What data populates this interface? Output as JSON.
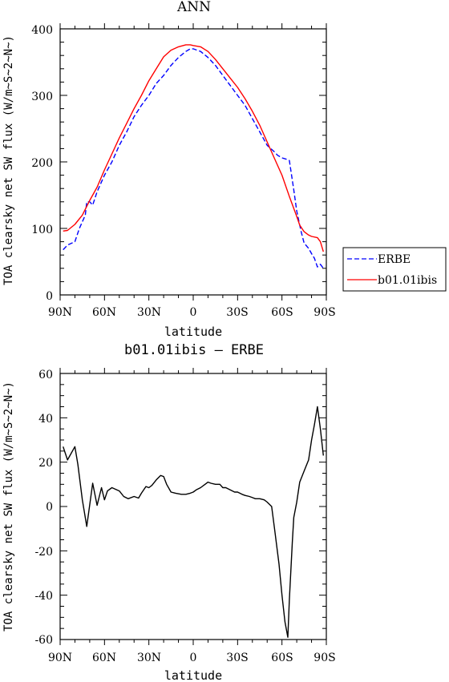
{
  "chart_data": [
    {
      "type": "line",
      "title": "ANN",
      "xlabel": "latitude",
      "ylabel": "TOA clearsky net SW flux (W/m~S~2~N~)",
      "xlim": [
        90,
        -90
      ],
      "ylim": [
        0,
        400
      ],
      "x_tick_values": [
        90,
        60,
        30,
        0,
        -30,
        -60,
        -90
      ],
      "x_tick_labels": [
        "90N",
        "60N",
        "30N",
        "0",
        "30S",
        "60S",
        "90S"
      ],
      "y_ticks": [
        0,
        100,
        200,
        300,
        400
      ],
      "legend_position": "right",
      "series": [
        {
          "name": "ERBE",
          "color": "#0000ff",
          "style": "dashed",
          "x": [
            88,
            85,
            80,
            77,
            73,
            72,
            70,
            68,
            65,
            60,
            55,
            50,
            45,
            40,
            35,
            30,
            25,
            20,
            15,
            10,
            5,
            2,
            0,
            -5,
            -10,
            -15,
            -20,
            -25,
            -30,
            -35,
            -40,
            -45,
            -50,
            -55,
            -57,
            -60,
            -63,
            -65,
            -68,
            -70,
            -73,
            -75,
            -78,
            -80,
            -82,
            -84,
            -86,
            -88
          ],
          "values": [
            68,
            75,
            80,
            100,
            120,
            140,
            140,
            135,
            155,
            180,
            200,
            225,
            245,
            268,
            285,
            300,
            318,
            330,
            345,
            357,
            366,
            370,
            370,
            366,
            357,
            345,
            330,
            315,
            300,
            285,
            265,
            245,
            225,
            215,
            210,
            206,
            204,
            202,
            158,
            126,
            95,
            78,
            70,
            62,
            55,
            42,
            46,
            40
          ]
        },
        {
          "name": "b01.01ibis",
          "color": "#ff0000",
          "style": "solid",
          "x": [
            88,
            85,
            80,
            75,
            70,
            65,
            60,
            55,
            50,
            45,
            40,
            35,
            30,
            25,
            20,
            15,
            10,
            5,
            2,
            0,
            -5,
            -10,
            -15,
            -20,
            -25,
            -30,
            -35,
            -40,
            -45,
            -50,
            -55,
            -60,
            -65,
            -70,
            -72,
            -75,
            -78,
            -80,
            -84,
            -86,
            -88
          ],
          "values": [
            96,
            97,
            106,
            120,
            142,
            162,
            188,
            212,
            236,
            258,
            280,
            300,
            322,
            340,
            358,
            368,
            373,
            376,
            376,
            375,
            373,
            366,
            354,
            340,
            326,
            312,
            295,
            276,
            255,
            230,
            205,
            180,
            148,
            118,
            105,
            95,
            90,
            88,
            86,
            80,
            65
          ]
        }
      ]
    },
    {
      "type": "line",
      "title": "b01.01ibis – ERBE",
      "xlabel": "latitude",
      "ylabel": "TOA clearsky net SW flux (W/m~S~2~N~)",
      "xlim": [
        90,
        -90
      ],
      "ylim": [
        -60,
        60
      ],
      "x_tick_values": [
        90,
        60,
        30,
        0,
        -30,
        -60,
        -90
      ],
      "x_tick_labels": [
        "90N",
        "60N",
        "30N",
        "0",
        "30S",
        "60S",
        "90S"
      ],
      "y_ticks": [
        -60,
        -40,
        -20,
        0,
        20,
        40,
        60
      ],
      "series": [
        {
          "name": "",
          "color": "#000000",
          "style": "solid",
          "x": [
            88,
            85,
            80,
            78,
            75,
            72,
            68,
            65,
            62,
            60,
            58,
            55,
            50,
            47,
            44,
            40,
            37,
            35,
            32,
            30,
            28,
            25,
            22,
            20,
            18,
            15,
            12,
            8,
            5,
            2,
            0,
            -2,
            -5,
            -8,
            -10,
            -12,
            -15,
            -18,
            -20,
            -22,
            -25,
            -28,
            -30,
            -33,
            -35,
            -38,
            -40,
            -42,
            -45,
            -48,
            -50,
            -53,
            -55,
            -58,
            -60,
            -62,
            -64,
            -65,
            -67,
            -68,
            -70,
            -72,
            -75,
            -78,
            -80,
            -82,
            -84,
            -86,
            -88
          ],
          "values": [
            27,
            21,
            27,
            19,
            3,
            -9,
            10.5,
            0.5,
            8.5,
            3,
            7,
            8.5,
            7,
            4.5,
            3.5,
            4.5,
            3.8,
            6,
            9,
            8.5,
            9.5,
            12,
            14,
            13.5,
            10,
            6.5,
            6,
            5.5,
            5.5,
            6,
            6.5,
            7.5,
            8.5,
            10,
            11,
            10.5,
            10,
            10,
            8.5,
            8.5,
            7.5,
            6.5,
            6.5,
            5.5,
            5,
            4.5,
            4,
            3.5,
            3.5,
            3,
            2,
            0,
            -10,
            -26,
            -40,
            -52,
            -59,
            -42,
            -16,
            -5,
            2,
            11,
            16,
            21,
            30,
            37,
            45,
            35,
            23
          ]
        }
      ]
    }
  ]
}
